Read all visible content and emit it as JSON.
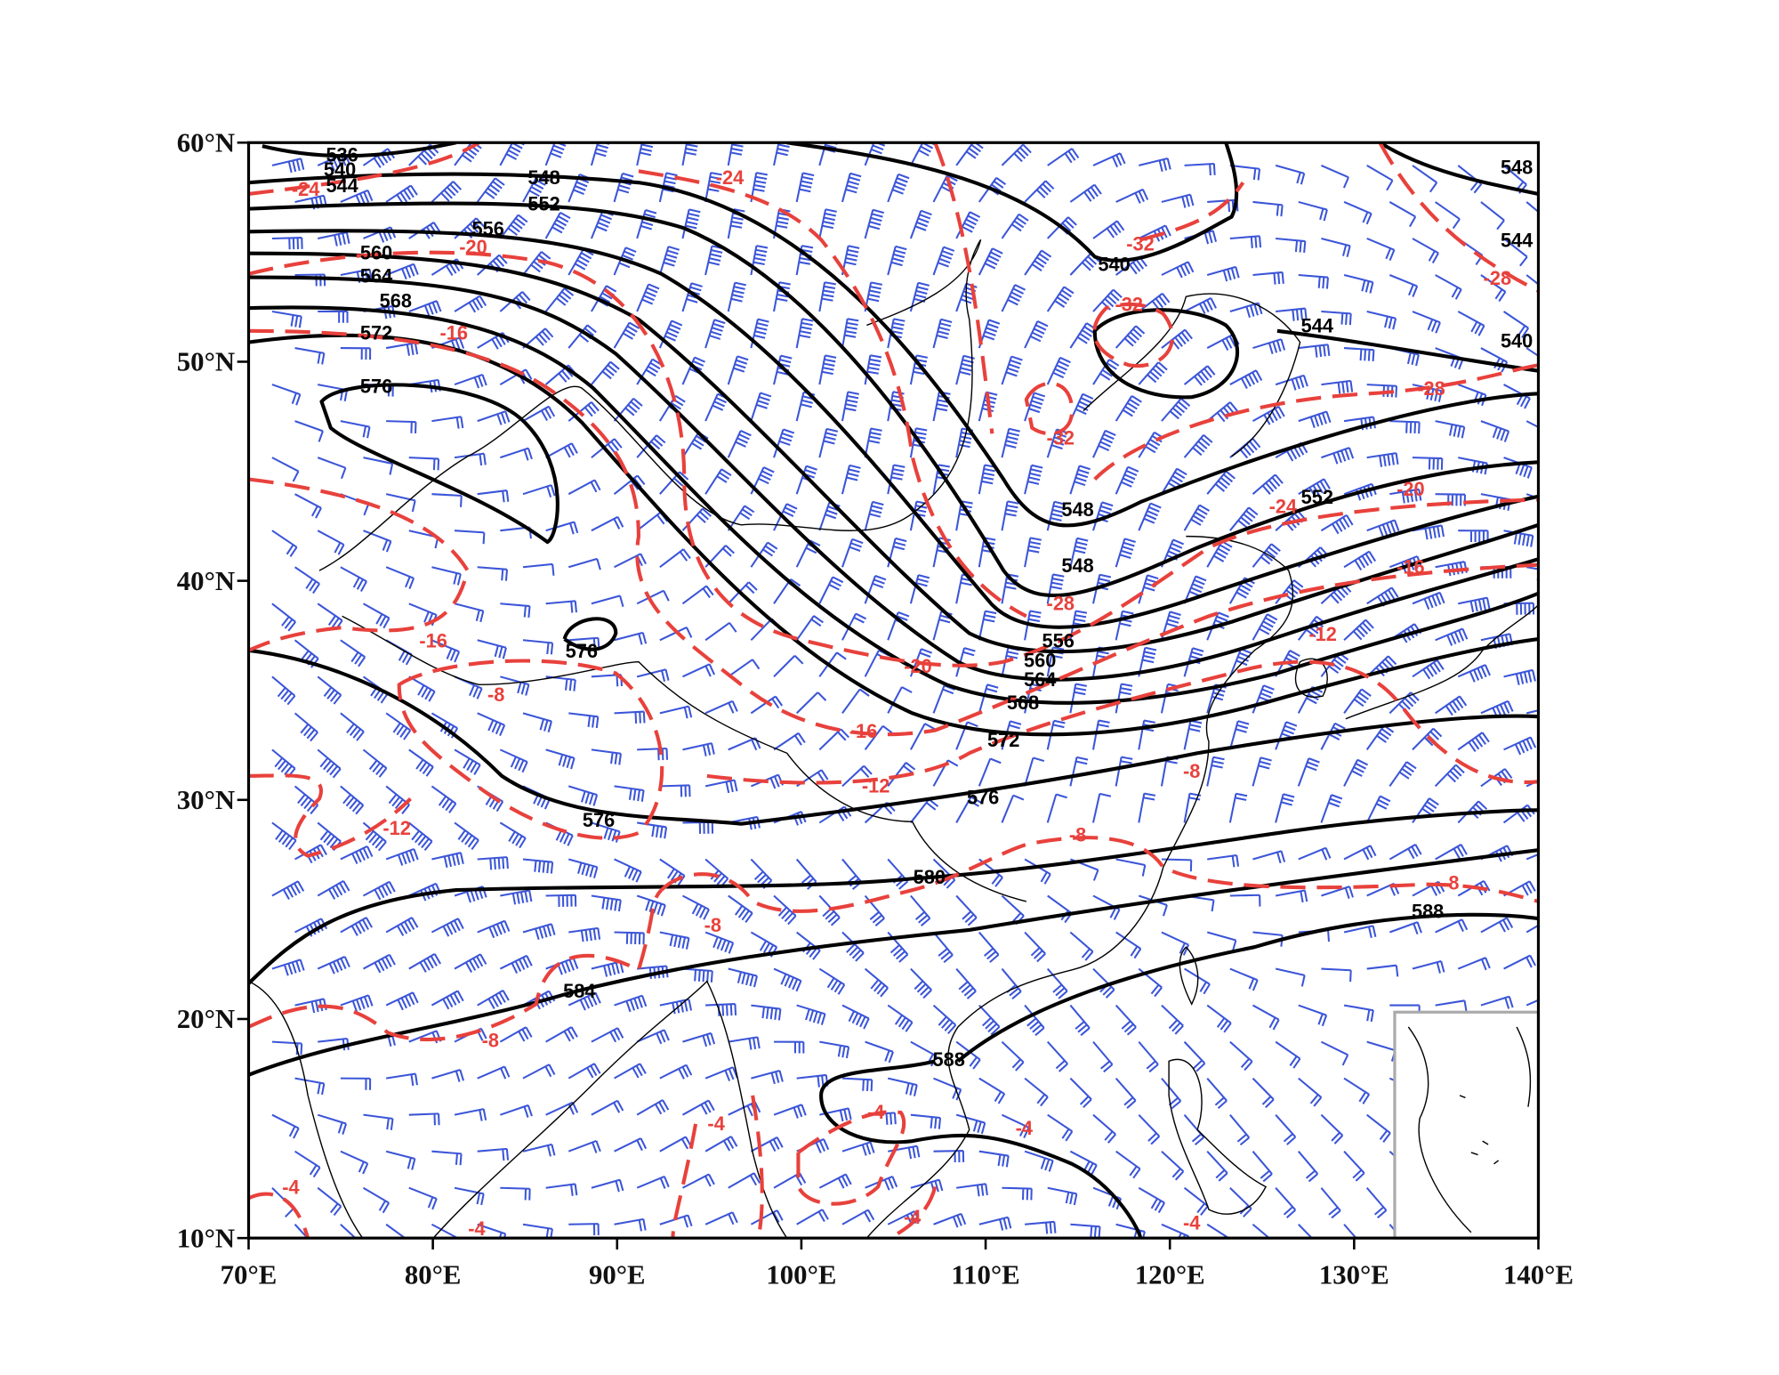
{
  "map": {
    "lat_ticks": [
      "10°N",
      "20°N",
      "30°N",
      "40°N",
      "50°N",
      "60°N"
    ],
    "lon_ticks": [
      "70°E",
      "80°E",
      "90°E",
      "100°E",
      "110°E",
      "120°E",
      "130°E",
      "140°E"
    ],
    "height_labels": [
      536,
      540,
      544,
      548,
      552,
      556,
      560,
      564,
      568,
      572,
      576,
      576,
      576,
      548,
      544,
      540,
      544,
      540,
      548,
      548,
      552,
      556,
      560,
      564,
      568,
      572,
      576,
      580,
      584,
      588,
      588
    ],
    "temp_labels": [
      -24,
      -24,
      -20,
      -16,
      -32,
      -32,
      -28,
      -32,
      -28,
      -24,
      -20,
      -28,
      -16,
      -16,
      -8,
      -20,
      -12,
      -16,
      -12,
      -12,
      -8,
      -8,
      -8,
      -8,
      -8,
      -4,
      -4,
      -4,
      -4,
      -4,
      -4,
      -4
    ]
  }
}
